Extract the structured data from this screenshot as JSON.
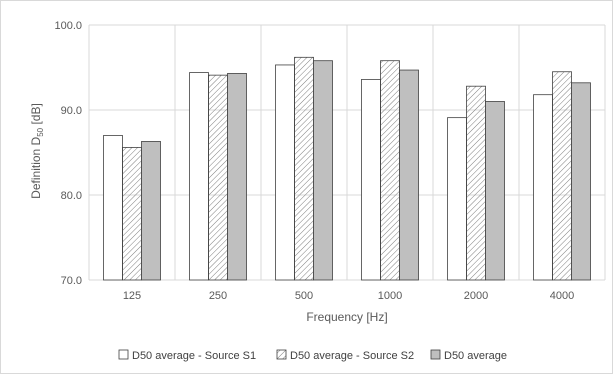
{
  "chart_data": {
    "type": "bar",
    "categories": [
      "125",
      "250",
      "500",
      "1000",
      "2000",
      "4000"
    ],
    "series": [
      {
        "name": "D50 average - Source S1",
        "values": [
          87.0,
          94.4,
          95.3,
          93.6,
          89.1,
          91.8
        ],
        "fill": "white"
      },
      {
        "name": "D50 average - Source S2",
        "values": [
          85.6,
          94.1,
          96.2,
          95.8,
          92.8,
          94.5
        ],
        "fill": "hatched"
      },
      {
        "name": "D50 average",
        "values": [
          86.3,
          94.3,
          95.8,
          94.7,
          91.0,
          93.2
        ],
        "fill": "gray"
      }
    ],
    "xlabel": "Frequency [Hz]",
    "ylabel": {
      "main": "Definition  D",
      "sub": "50",
      "unit": " [dB]"
    },
    "ylim": [
      70,
      100
    ],
    "yticks": [
      "70.0",
      "80.0",
      "90.0",
      "100.0"
    ],
    "grid": true,
    "legend": "bottom",
    "colors": {
      "bar_outline": "#404040",
      "gray_fill": "#bfbfbf",
      "grid": "#d9d9d9",
      "hatch": "#7f7f7f"
    }
  }
}
